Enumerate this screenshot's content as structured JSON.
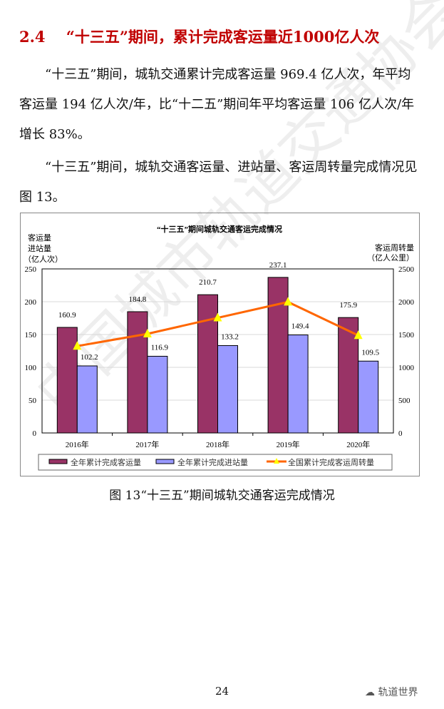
{
  "heading": "2.4    “十三五”期间，累计完成客运量近1000亿人次",
  "paragraphs": [
    "　　“十三五”期间，城轨交通累计完成客运量 969.4 亿人次，年平均客运量 194 亿人次/年，比“十二五”期间年平均客运量 106 亿人次/年增长 83%。",
    "　　“十三五”期间，城轨交通客运量、进站量、客运周转量完成情况见图 13。"
  ],
  "caption": "图 13“十三五”期间城轨交通客运完成情况",
  "page_number": "24",
  "brand": "轨道世界",
  "watermark": "中国城市轨道交通协会",
  "chart_data": {
    "type": "bar",
    "title": "“十三五”期间城轨交通客运完成情况",
    "ylabel_left": [
      "客运量",
      "进站量",
      "（亿人次）"
    ],
    "ylabel_right": [
      "客运周转量",
      "（亿人公里）"
    ],
    "categories": [
      "2016年",
      "2017年",
      "2018年",
      "2019年",
      "2020年"
    ],
    "ylim": [
      0,
      250
    ],
    "yticks": [
      0,
      50,
      100,
      150,
      200,
      250
    ],
    "ylim_right": [
      0,
      2500
    ],
    "yticks_right": [
      0,
      500,
      1000,
      1500,
      2000,
      2500
    ],
    "series": [
      {
        "name": "全年累计完成客运量",
        "type": "bar",
        "color": "#993366",
        "values": [
          160.9,
          184.8,
          210.7,
          237.1,
          175.9
        ]
      },
      {
        "name": "全年累计完成进站量",
        "type": "bar",
        "color": "#9999ff",
        "values": [
          102.2,
          116.9,
          133.2,
          149.4,
          109.5
        ]
      },
      {
        "name": "全国累计完成客运周转量",
        "type": "line",
        "axis": "right",
        "color": "#ff6600",
        "marker_color": "#ffff00",
        "values": [
          1324,
          1511,
          1755,
          1996,
          1486
        ]
      }
    ],
    "grid": true,
    "legend": "bottom"
  }
}
